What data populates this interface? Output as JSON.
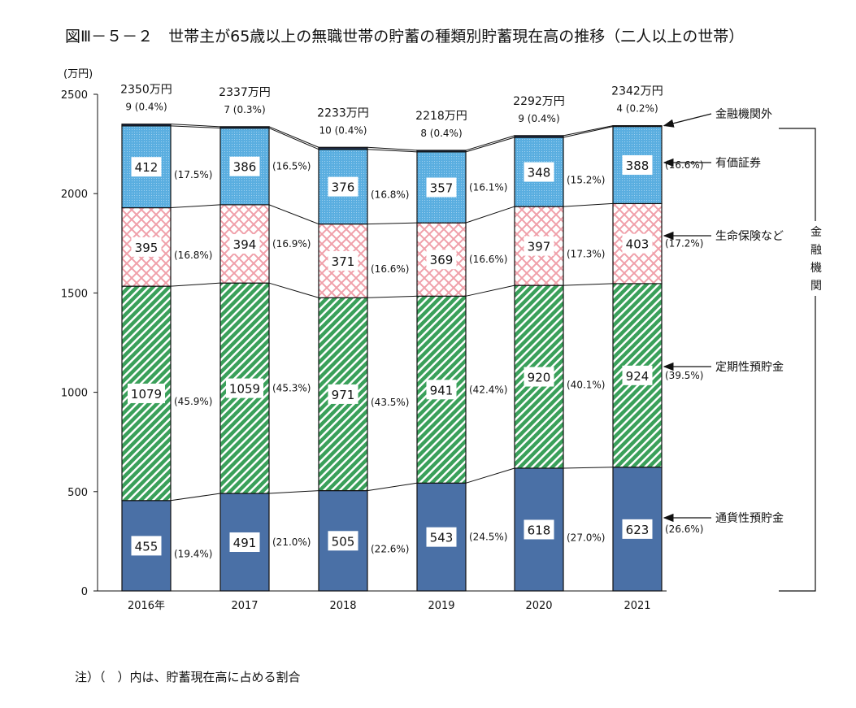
{
  "title": "図Ⅲ－５－２　世帯主が65歳以上の無職世帯の貯蓄の種類別貯蓄現在高の推移（二人以上の世帯）",
  "note": "注）（　）内は、貯蓄現在高に占める割合",
  "chart_data": {
    "type": "bar",
    "stacked": true,
    "title": "図Ⅲ－５－２　世帯主が65歳以上の無職世帯の貯蓄の種類別貯蓄現在高の推移（二人以上の世帯）",
    "ylabel": "(万円)",
    "xlabel": "",
    "ylim": [
      0,
      2500
    ],
    "yticks": [
      "0",
      "500",
      "1000",
      "1500",
      "2000",
      "2500"
    ],
    "grid": false,
    "categories": [
      "2016年",
      "2017",
      "2018",
      "2019",
      "2020",
      "2021"
    ],
    "totals": [
      "2350万円",
      "2337万円",
      "2233万円",
      "2218万円",
      "2292万円",
      "2342万円"
    ],
    "series": [
      {
        "name": "通貨性預貯金",
        "color": "#4a70a6",
        "pattern": "solid",
        "values": [
          455,
          491,
          505,
          543,
          618,
          623
        ],
        "percents": [
          "(19.4%)",
          "(21.0%)",
          "(22.6%)",
          "(24.5%)",
          "(27.0%)",
          "(26.6%)"
        ]
      },
      {
        "name": "定期性預貯金",
        "color": "#3aa05a",
        "pattern": "diagonal-stripes",
        "values": [
          1079,
          1059,
          971,
          941,
          920,
          924
        ],
        "percents": [
          "(45.9%)",
          "(45.3%)",
          "(43.5%)",
          "(42.4%)",
          "(40.1%)",
          "(39.5%)"
        ]
      },
      {
        "name": "生命保険など",
        "color": "#f0a0aa",
        "pattern": "crosshatch",
        "values": [
          395,
          394,
          371,
          369,
          397,
          403
        ],
        "percents": [
          "(16.8%)",
          "(16.9%)",
          "(16.6%)",
          "(16.6%)",
          "(17.3%)",
          "(17.2%)"
        ]
      },
      {
        "name": "有価証券",
        "color": "#5aaee0",
        "pattern": "dots",
        "values": [
          412,
          386,
          376,
          357,
          348,
          388
        ],
        "percents": [
          "(17.5%)",
          "(16.5%)",
          "(16.8%)",
          "(16.1%)",
          "(15.2%)",
          "(16.6%)"
        ]
      },
      {
        "name": "金融機関外",
        "color": "#1e2f4f",
        "pattern": "solid",
        "values": [
          9,
          7,
          10,
          8,
          9,
          4
        ],
        "percents": [
          "(0.4%)",
          "(0.3%)",
          "(0.4%)",
          "(0.4%)",
          "(0.4%)",
          "(0.2%)"
        ]
      }
    ],
    "bracket_label": "金融機関",
    "legend_placement": "right"
  }
}
